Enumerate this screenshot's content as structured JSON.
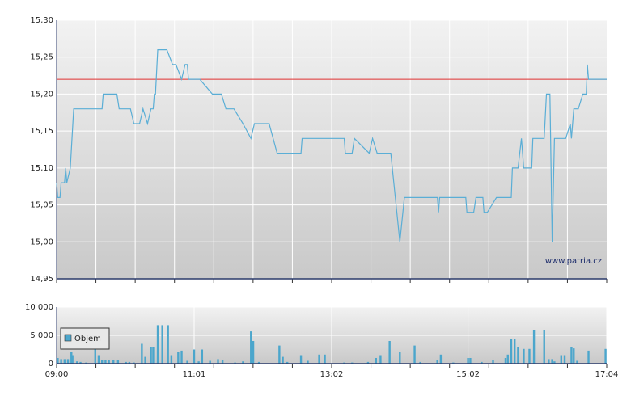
{
  "chart_data": [
    {
      "type": "line",
      "x": [
        "09:00",
        "09:01",
        "09:03",
        "09:04",
        "09:07",
        "09:08",
        "09:09",
        "09:12",
        "09:15",
        "09:40",
        "09:41",
        "09:53",
        "09:55",
        "10:05",
        "10:08",
        "10:13",
        "10:16",
        "10:20",
        "10:23",
        "10:25",
        "10:26",
        "10:27",
        "10:29",
        "10:37",
        "10:42",
        "10:45",
        "10:50",
        "10:53",
        "10:55",
        "10:56",
        "11:06",
        "11:17",
        "11:25",
        "11:29",
        "11:36",
        "11:44",
        "11:51",
        "11:54",
        "12:07",
        "12:14",
        "12:35",
        "12:36",
        "13:13",
        "13:14",
        "13:20",
        "13:22",
        "13:35",
        "13:38",
        "13:42",
        "13:54",
        "14:02",
        "14:06",
        "14:35",
        "14:36",
        "14:37",
        "15:00",
        "15:01",
        "15:07",
        "15:09",
        "15:15",
        "15:16",
        "15:19",
        "15:27",
        "15:40",
        "15:41",
        "15:46",
        "15:49",
        "15:51",
        "15:58",
        "15:59",
        "16:09",
        "16:11",
        "16:14",
        "16:16",
        "16:18",
        "16:28",
        "16:32",
        "16:33",
        "16:35",
        "16:39",
        "16:43",
        "16:46",
        "16:47",
        "16:48",
        "17:04"
      ],
      "series": [
        {
          "color": "#5aaed6",
          "values": [
            15.08,
            15.06,
            15.06,
            15.08,
            15.08,
            15.1,
            15.08,
            15.1,
            15.18,
            15.18,
            15.2,
            15.2,
            15.18,
            15.18,
            15.16,
            15.16,
            15.18,
            15.16,
            15.18,
            15.18,
            15.2,
            15.2,
            15.26,
            15.26,
            15.24,
            15.24,
            15.22,
            15.24,
            15.24,
            15.22,
            15.22,
            15.2,
            15.2,
            15.18,
            15.18,
            15.16,
            15.14,
            15.16,
            15.16,
            15.12,
            15.12,
            15.14,
            15.14,
            15.12,
            15.12,
            15.14,
            15.12,
            15.14,
            15.12,
            15.12,
            15.0,
            15.06,
            15.06,
            15.04,
            15.06,
            15.06,
            15.04,
            15.04,
            15.06,
            15.06,
            15.04,
            15.04,
            15.06,
            15.06,
            15.1,
            15.1,
            15.14,
            15.1,
            15.1,
            15.14,
            15.14,
            15.2,
            15.2,
            15.0,
            15.14,
            15.14,
            15.16,
            15.14,
            15.18,
            15.18,
            15.2,
            15.2,
            15.24,
            15.22,
            15.22
          ]
        }
      ],
      "reference_line": {
        "value": 15.22,
        "color": "#e03030"
      },
      "xlim": [
        "09:00",
        "17:04"
      ],
      "ylim": [
        14.95,
        15.3
      ],
      "yticks": [
        {
          "value": 14.95,
          "label": "14,95"
        },
        {
          "value": 15.0,
          "label": "15,00"
        },
        {
          "value": 15.05,
          "label": "15,05"
        },
        {
          "value": 15.1,
          "label": "15,10"
        },
        {
          "value": 15.15,
          "label": "15,15"
        },
        {
          "value": 15.2,
          "label": "15,20"
        },
        {
          "value": 15.25,
          "label": "15,25"
        },
        {
          "value": 15.3,
          "label": "15,30"
        }
      ],
      "grid": true,
      "annotation": "www.patria.cz"
    },
    {
      "type": "bar",
      "series": [
        {
          "name": "Objem",
          "color": "#4ba6cc",
          "x": [
            "09:01",
            "09:04",
            "09:07",
            "09:10",
            "09:13",
            "09:14",
            "09:18",
            "09:21",
            "09:26",
            "09:34",
            "09:37",
            "09:40",
            "09:43",
            "09:46",
            "09:50",
            "09:54",
            "10:01",
            "10:04",
            "10:08",
            "10:15",
            "10:18",
            "10:23",
            "10:25",
            "10:29",
            "10:33",
            "10:38",
            "10:41",
            "10:47",
            "10:50",
            "10:55",
            "11:01",
            "11:05",
            "11:08",
            "11:15",
            "11:22",
            "11:26",
            "11:37",
            "11:44",
            "11:51",
            "11:53",
            "11:58",
            "12:16",
            "12:19",
            "12:23",
            "12:35",
            "12:41",
            "12:51",
            "12:56",
            "13:13",
            "13:20",
            "13:34",
            "13:41",
            "13:45",
            "13:53",
            "14:02",
            "14:15",
            "14:20",
            "14:35",
            "14:38",
            "14:49",
            "15:02",
            "15:04",
            "15:14",
            "15:24",
            "15:35",
            "15:37",
            "15:40",
            "15:43",
            "15:46",
            "15:51",
            "15:56",
            "16:00",
            "16:09",
            "16:13",
            "16:16",
            "16:18",
            "16:24",
            "16:27",
            "16:33",
            "16:35",
            "16:38",
            "16:48",
            "17:03"
          ],
          "values": [
            1000,
            800,
            800,
            800,
            2000,
            1500,
            400,
            300,
            200,
            3500,
            1500,
            600,
            600,
            600,
            600,
            600,
            300,
            300,
            200,
            3500,
            1200,
            3000,
            3000,
            6800,
            6800,
            6800,
            1500,
            2000,
            2300,
            500,
            2500,
            400,
            2500,
            500,
            800,
            600,
            200,
            400,
            5700,
            4000,
            300,
            3200,
            1200,
            300,
            1500,
            500,
            1600,
            1600,
            200,
            200,
            300,
            1000,
            1500,
            4000,
            2000,
            3200,
            300,
            600,
            1600,
            200,
            1000,
            1000,
            300,
            600,
            1000,
            1600,
            4300,
            4300,
            3000,
            2600,
            2600,
            6000,
            6000,
            800,
            800,
            400,
            1500,
            1500,
            3000,
            2700,
            500,
            2300,
            2600
          ]
        }
      ],
      "xlim": [
        "09:00",
        "17:04"
      ],
      "xticks": [
        "09:00",
        "11:01",
        "13:02",
        "15:02",
        "17:04"
      ],
      "ylim": [
        0,
        10000
      ],
      "yticks": [
        0,
        {
          "value": 5000,
          "label": "5 000"
        },
        {
          "value": 10000,
          "label": "10 000"
        }
      ],
      "grid": true
    }
  ]
}
